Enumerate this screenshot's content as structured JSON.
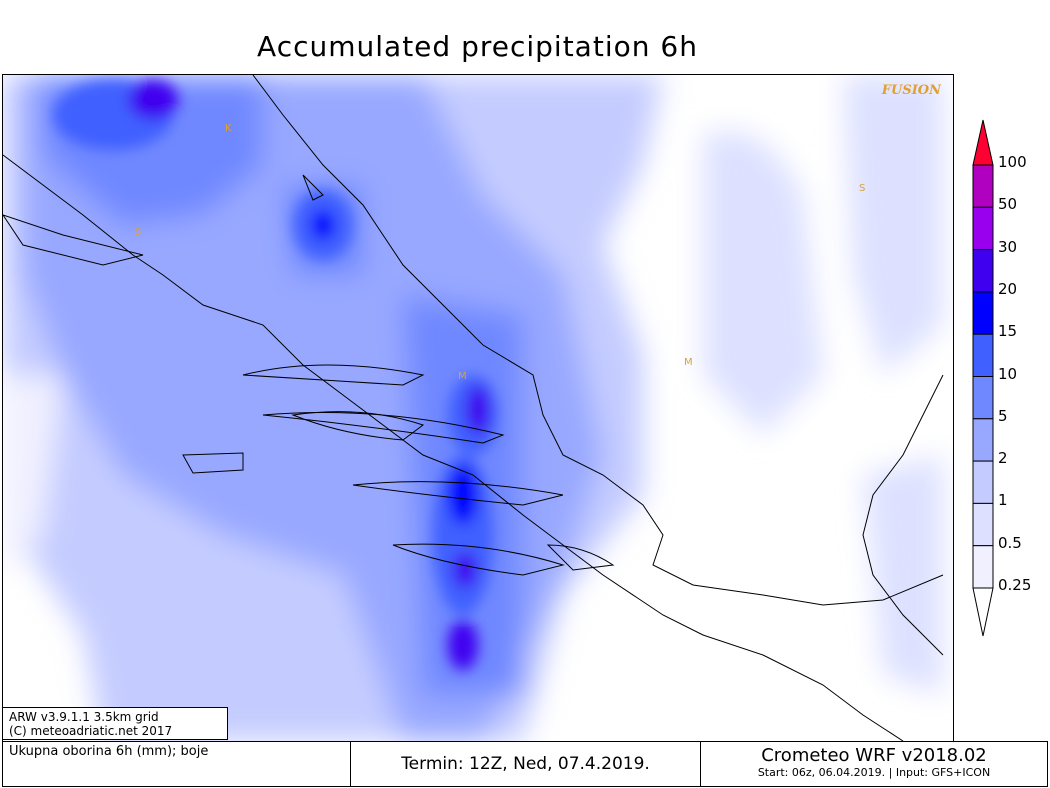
{
  "title": "Accumulated precipitation 6h",
  "map": {
    "watermark": "FUSION",
    "labels": [
      "K",
      "S",
      "S",
      "M",
      "M"
    ]
  },
  "info_box": {
    "line1": "ARW v3.9.1.1 3.5km grid",
    "line2": "(C) meteoadriatic.net 2017"
  },
  "footer": {
    "variable": "Ukupna oborina 6h (mm); boje",
    "termin": "Termin: 12Z, Ned, 07.4.2019.",
    "model": "Crometeo WRF v2018.02",
    "run": "Start: 06z, 06.04.2019. | Input: GFS+ICON"
  },
  "legend": {
    "unit": "mm",
    "levels": [
      "100",
      "50",
      "30",
      "20",
      "15",
      "10",
      "5",
      "2",
      "1",
      "0.5",
      "0.25"
    ],
    "colors": [
      "#ff0033",
      "#b000c0",
      "#9800ee",
      "#4000f0",
      "#0000ff",
      "#4060ff",
      "#7088ff",
      "#98a8ff",
      "#c4ccff",
      "#dde1ff",
      "#f0f0ff",
      "#ffffff"
    ]
  }
}
